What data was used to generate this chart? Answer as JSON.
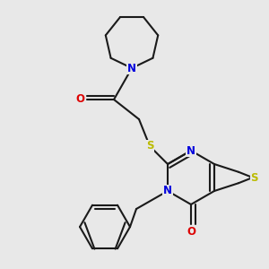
{
  "bg": "#e8e8e8",
  "bc": "#1a1a1a",
  "Nc": "#0000dd",
  "Sc": "#bbbb00",
  "Oc": "#dd0000",
  "lw": 1.5,
  "fs": 8.5,
  "xlim": [
    0,
    300
  ],
  "ylim": [
    0,
    300
  ],
  "figsize": [
    3.0,
    3.0
  ],
  "dpi": 100
}
